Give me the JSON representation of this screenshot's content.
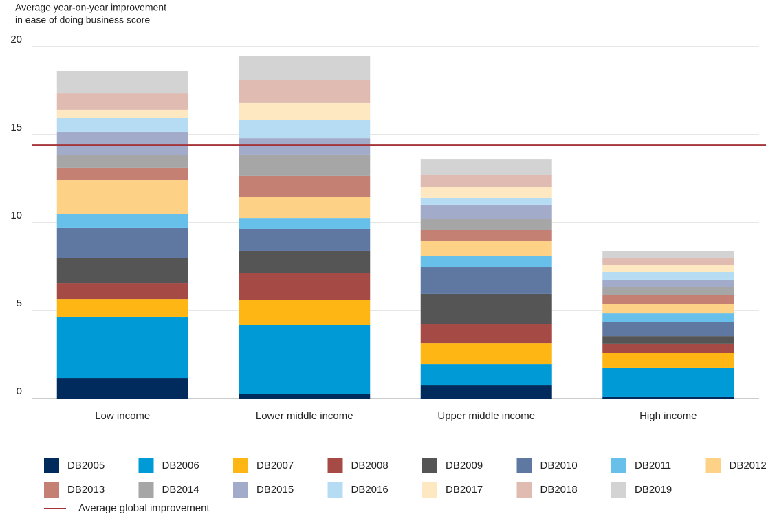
{
  "chart_data": {
    "type": "stacked_bar",
    "y_label": [
      "Average year-on-year improvement",
      "in ease of doing business score"
    ],
    "categories": [
      "Low income",
      "Lower middle income",
      "Upper middle income",
      "High income"
    ],
    "ylim": [
      0,
      20
    ],
    "yticks": [
      0,
      5,
      10,
      15,
      20
    ],
    "grid": true,
    "series": [
      {
        "name": "DB2005",
        "color": "#002b5c",
        "values": [
          1.17,
          0.27,
          0.74,
          0.08
        ]
      },
      {
        "name": "DB2006",
        "color": "#009ad7",
        "values": [
          3.48,
          3.91,
          1.21,
          1.68
        ]
      },
      {
        "name": "DB2007",
        "color": "#fdb614",
        "values": [
          1.01,
          1.41,
          1.21,
          0.82
        ]
      },
      {
        "name": "DB2008",
        "color": "#a54a45",
        "values": [
          0.9,
          1.52,
          1.06,
          0.55
        ]
      },
      {
        "name": "DB2009",
        "color": "#555555",
        "values": [
          1.44,
          1.29,
          1.72,
          0.42
        ]
      },
      {
        "name": "DB2010",
        "color": "#5e78a1",
        "values": [
          1.69,
          1.25,
          1.52,
          0.79
        ]
      },
      {
        "name": "DB2011",
        "color": "#67c0ea",
        "values": [
          0.78,
          0.62,
          0.63,
          0.5
        ]
      },
      {
        "name": "DB2012",
        "color": "#fdd287",
        "values": [
          1.95,
          1.18,
          0.86,
          0.55
        ]
      },
      {
        "name": "DB2013",
        "color": "#c48173",
        "values": [
          0.71,
          1.21,
          0.66,
          0.47
        ]
      },
      {
        "name": "DB2014",
        "color": "#a6a6a6",
        "values": [
          0.7,
          1.21,
          0.59,
          0.47
        ]
      },
      {
        "name": "DB2015",
        "color": "#a3abcb",
        "values": [
          1.33,
          0.93,
          0.82,
          0.43
        ]
      },
      {
        "name": "DB2016",
        "color": "#b6dcf4",
        "values": [
          0.78,
          1.06,
          0.39,
          0.43
        ]
      },
      {
        "name": "DB2017",
        "color": "#fde8c1",
        "values": [
          0.47,
          0.94,
          0.62,
          0.39
        ]
      },
      {
        "name": "DB2018",
        "color": "#e0bbb2",
        "values": [
          0.93,
          1.29,
          0.7,
          0.39
        ]
      },
      {
        "name": "DB2019",
        "color": "#d3d3d3",
        "values": [
          1.29,
          1.4,
          0.86,
          0.43
        ]
      }
    ],
    "reference_line": {
      "name": "Average global improvement",
      "value": 14.41,
      "color": "#a4343a"
    }
  }
}
